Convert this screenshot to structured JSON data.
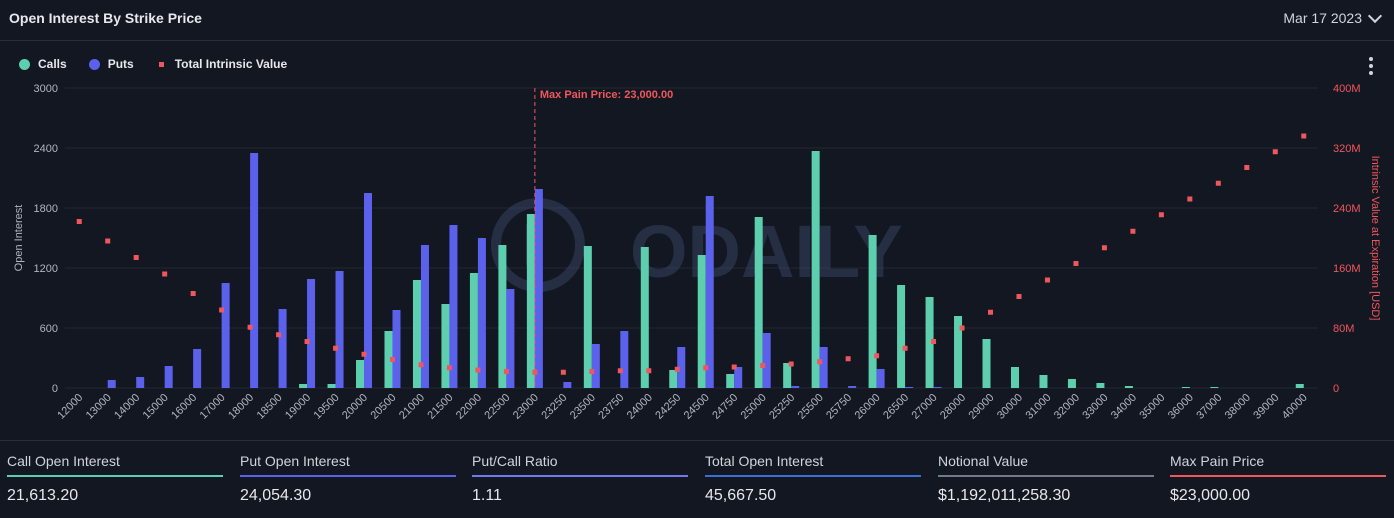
{
  "header": {
    "title": "Open Interest By Strike Price",
    "date": "Mar 17 2023"
  },
  "legend": {
    "calls": "Calls",
    "puts": "Puts",
    "intrinsic": "Total Intrinsic Value"
  },
  "watermark": "ODAILY",
  "colors": {
    "calls": "#5ecfae",
    "puts": "#5b61eb",
    "intrinsic": "#f0575c",
    "background": "#131722",
    "total": "#3b6fd6",
    "notional": "#6f7a8c"
  },
  "chart_data": {
    "type": "bar",
    "title": "Open Interest By Strike Price",
    "ylabel": "Open Interest",
    "y2label": "Intrinsic Value at Expiration [USD]",
    "ylim": [
      0,
      3000
    ],
    "y2lim": [
      0,
      400
    ],
    "y_ticks": [
      "0",
      "600",
      "1200",
      "1800",
      "2400",
      "3000"
    ],
    "y2_ticks": [
      "0",
      "80M",
      "160M",
      "240M",
      "320M",
      "400M"
    ],
    "categories": [
      "12000",
      "13000",
      "14000",
      "15000",
      "16000",
      "17000",
      "18000",
      "18500",
      "19000",
      "19500",
      "20000",
      "20500",
      "21000",
      "21500",
      "22000",
      "22500",
      "23000",
      "23250",
      "23500",
      "23750",
      "24000",
      "24250",
      "24500",
      "24750",
      "25000",
      "25250",
      "25500",
      "25750",
      "26000",
      "26500",
      "27000",
      "28000",
      "29000",
      "30000",
      "31000",
      "32000",
      "33000",
      "34000",
      "35000",
      "36000",
      "37000",
      "38000",
      "39000",
      "40000"
    ],
    "series": [
      {
        "name": "Calls",
        "values": [
          0,
          0,
          0,
          0,
          0,
          0,
          0,
          0,
          40,
          40,
          280,
          570,
          1080,
          840,
          1150,
          1430,
          1740,
          0,
          1420,
          0,
          1410,
          180,
          1330,
          140,
          1710,
          250,
          2370,
          0,
          1530,
          1030,
          910,
          720,
          490,
          210,
          130,
          90,
          50,
          20,
          0,
          10,
          10,
          0,
          0,
          40
        ]
      },
      {
        "name": "Puts",
        "values": [
          0,
          80,
          110,
          220,
          390,
          1050,
          2350,
          790,
          1090,
          1170,
          1950,
          780,
          1430,
          1630,
          1500,
          990,
          1990,
          60,
          440,
          570,
          0,
          410,
          1920,
          210,
          550,
          20,
          410,
          20,
          190,
          10,
          10,
          0,
          0,
          0,
          0,
          0,
          0,
          0,
          0,
          0,
          0,
          0,
          0,
          0
        ]
      },
      {
        "name": "Total Intrinsic Value",
        "values": [
          222,
          196,
          174,
          152,
          126,
          104,
          81,
          71,
          62,
          53,
          45,
          38,
          31,
          27,
          24,
          22,
          21,
          21,
          22,
          23,
          23,
          25,
          27,
          28,
          30,
          32,
          35,
          39,
          43,
          53,
          62,
          80,
          101,
          122,
          144,
          166,
          187,
          209,
          231,
          252,
          273,
          294,
          315,
          336
        ]
      }
    ],
    "annotations": [
      {
        "text": "Max Pain Price: 23,000.00",
        "x": "23000"
      }
    ]
  },
  "stats": [
    {
      "label": "Call Open Interest",
      "value": "21,613.20",
      "color": "#5ecfae"
    },
    {
      "label": "Put Open Interest",
      "value": "24,054.30",
      "color": "#5b61eb"
    },
    {
      "label": "Put/Call Ratio",
      "value": "1.11",
      "color": "#7378f0"
    },
    {
      "label": "Total Open Interest",
      "value": "45,667.50",
      "color": "#3b6fd6"
    },
    {
      "label": "Notional Value",
      "value": "$1,192,011,258.30",
      "color": "#6f7a8c"
    },
    {
      "label": "Max Pain Price",
      "value": "$23,000.00",
      "color": "#f0575c"
    }
  ]
}
